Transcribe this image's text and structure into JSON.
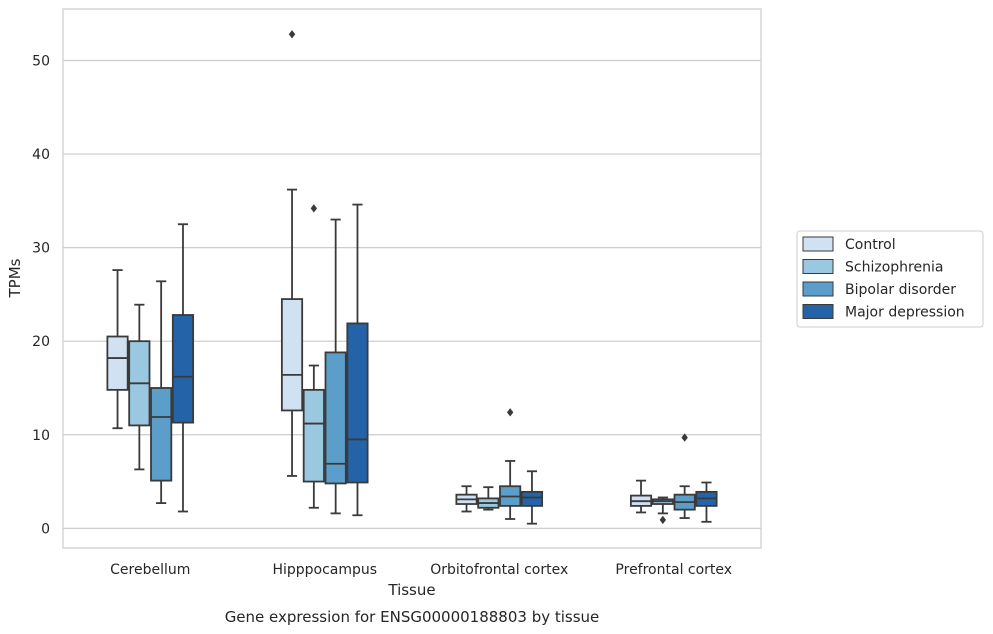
{
  "caption": "Gene expression for ENSG00000188803 by tissue",
  "chart_data": {
    "type": "boxplot",
    "xlabel": "Tissue",
    "ylabel": "TPMs",
    "ylim": [
      -2.1,
      55.5
    ],
    "yticks": [
      0,
      10,
      20,
      30,
      40,
      50
    ],
    "grid": true,
    "legend_position": "right",
    "categories": [
      "Cerebellum",
      "Hipppocampus",
      "Orbitofrontal cortex",
      "Prefrontal cortex"
    ],
    "series": [
      {
        "name": "Control",
        "color": "#d0e1f2",
        "boxes": [
          {
            "whislo": 10.7,
            "q1": 14.8,
            "med": 18.2,
            "q3": 20.5,
            "whishi": 27.6,
            "fliers": []
          },
          {
            "whislo": 5.6,
            "q1": 12.6,
            "med": 16.4,
            "q3": 24.5,
            "whishi": 36.2,
            "fliers": [
              52.8
            ]
          },
          {
            "whislo": 1.8,
            "q1": 2.6,
            "med": 3.1,
            "q3": 3.6,
            "whishi": 4.5,
            "fliers": []
          },
          {
            "whislo": 1.7,
            "q1": 2.4,
            "med": 2.9,
            "q3": 3.5,
            "whishi": 5.1,
            "fliers": []
          }
        ]
      },
      {
        "name": "Schizophrenia",
        "color": "#9ac8e0",
        "boxes": [
          {
            "whislo": 6.3,
            "q1": 11.0,
            "med": 15.5,
            "q3": 20.0,
            "whishi": 23.9,
            "fliers": []
          },
          {
            "whislo": 2.2,
            "q1": 5.0,
            "med": 11.2,
            "q3": 14.8,
            "whishi": 17.4,
            "fliers": [
              34.2
            ]
          },
          {
            "whislo": 2.0,
            "q1": 2.2,
            "med": 2.7,
            "q3": 3.2,
            "whishi": 4.4,
            "fliers": []
          },
          {
            "whislo": 1.6,
            "q1": 2.6,
            "med": 2.9,
            "q3": 3.1,
            "whishi": 3.3,
            "fliers": [
              0.9
            ]
          }
        ]
      },
      {
        "name": "Bipolar disorder",
        "color": "#5a9ec9",
        "boxes": [
          {
            "whislo": 2.7,
            "q1": 5.1,
            "med": 11.9,
            "q3": 15.0,
            "whishi": 26.4,
            "fliers": []
          },
          {
            "whislo": 1.6,
            "q1": 4.8,
            "med": 6.9,
            "q3": 18.8,
            "whishi": 33.0,
            "fliers": []
          },
          {
            "whislo": 1.0,
            "q1": 2.4,
            "med": 3.4,
            "q3": 4.5,
            "whishi": 7.2,
            "fliers": [
              12.4
            ]
          },
          {
            "whislo": 1.1,
            "q1": 2.0,
            "med": 2.8,
            "q3": 3.6,
            "whishi": 4.5,
            "fliers": [
              9.7
            ]
          }
        ]
      },
      {
        "name": "Major depression",
        "color": "#2563a8",
        "boxes": [
          {
            "whislo": 1.8,
            "q1": 11.3,
            "med": 16.2,
            "q3": 22.8,
            "whishi": 32.5,
            "fliers": []
          },
          {
            "whislo": 1.4,
            "q1": 4.9,
            "med": 9.5,
            "q3": 21.9,
            "whishi": 34.6,
            "fliers": []
          },
          {
            "whislo": 0.5,
            "q1": 2.4,
            "med": 3.3,
            "q3": 3.9,
            "whishi": 6.1,
            "fliers": []
          },
          {
            "whislo": 0.7,
            "q1": 2.4,
            "med": 3.2,
            "q3": 3.9,
            "whishi": 4.9,
            "fliers": []
          }
        ]
      }
    ]
  }
}
